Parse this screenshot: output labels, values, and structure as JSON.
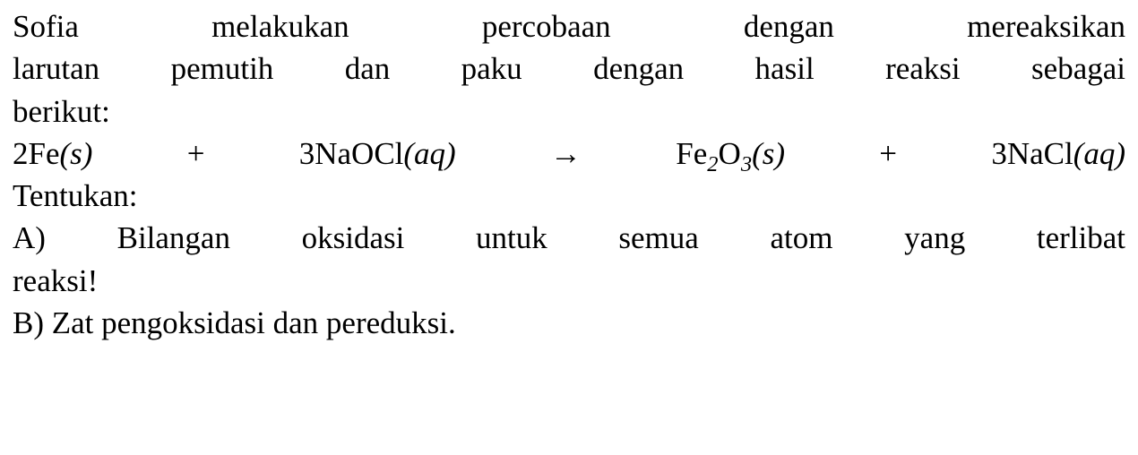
{
  "font": {
    "family": "Times New Roman",
    "size_pt": 26,
    "color": "#000000",
    "background": "#ffffff"
  },
  "lines": {
    "l1": "Sofia melakukan percobaan dengan mereaksikan",
    "l2": "larutan pemutih dan paku dengan hasil reaksi sebagai",
    "l3": "berikut:",
    "l5": "Tentukan:",
    "l6": "A) Bilangan oksidasi untuk semua atom yang terlibat",
    "l7": "reaksi!",
    "l8": "B) Zat pengoksidasi dan pereduksi."
  },
  "equation": {
    "p1": "2Fe",
    "state1": "(s)",
    "plus1": " + ",
    "p2": "3NaOCl",
    "state2": "(aq)",
    "arrow": " → ",
    "p3_a": "Fe",
    "p3_sub1": "2",
    "p3_b": "O",
    "p3_sub2": "3",
    "state3": "(s)",
    "plus2": " + ",
    "p4": "3NaCl",
    "state4": "(aq)"
  }
}
